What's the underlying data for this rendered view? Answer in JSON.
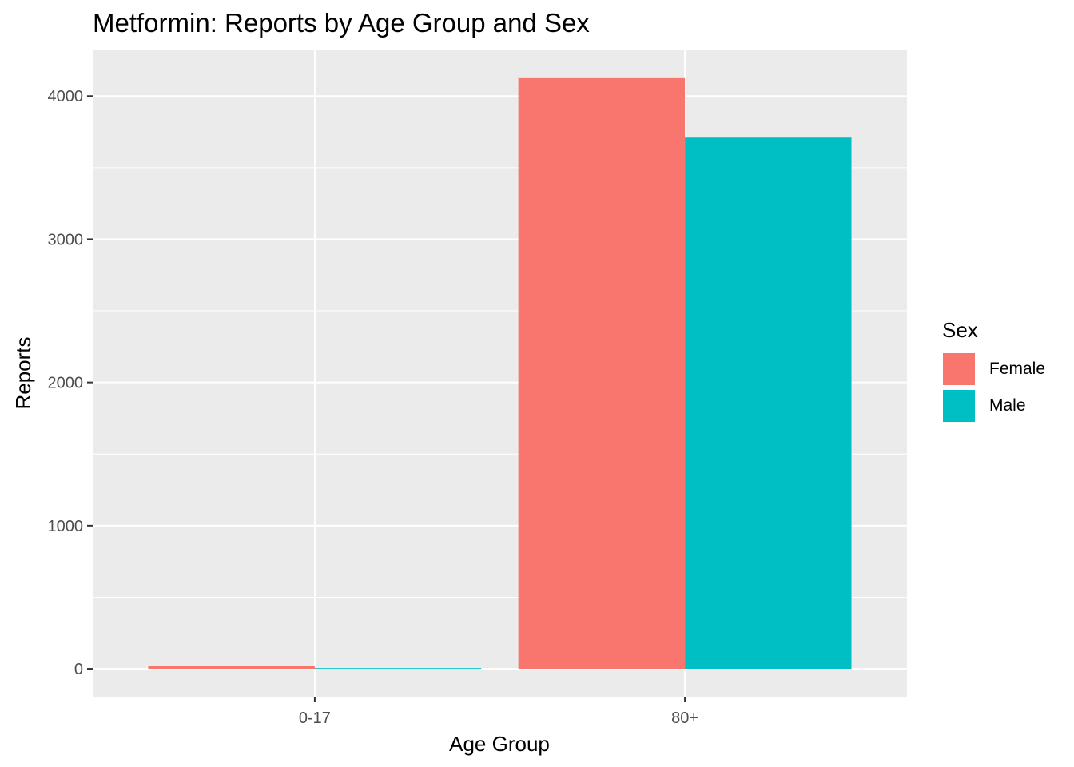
{
  "chart_data": {
    "type": "bar",
    "title": "Metformin: Reports by Age Group and Sex",
    "xlabel": "Age Group",
    "ylabel": "Reports",
    "categories": [
      "0-17",
      "80+"
    ],
    "series": [
      {
        "name": "Female",
        "values": [
          20,
          4125
        ],
        "color": "#F8766D"
      },
      {
        "name": "Male",
        "values": [
          5,
          3710
        ],
        "color": "#00BFC4"
      }
    ],
    "ylim": [
      -195,
      4325
    ],
    "yticks": [
      0,
      1000,
      2000,
      3000,
      4000
    ],
    "yticks_labels": [
      "0",
      "1000",
      "2000",
      "3000",
      "4000"
    ],
    "grid": true,
    "panel_color": "#EBEBEB",
    "legend": {
      "title": "Sex",
      "placement": "right"
    }
  }
}
